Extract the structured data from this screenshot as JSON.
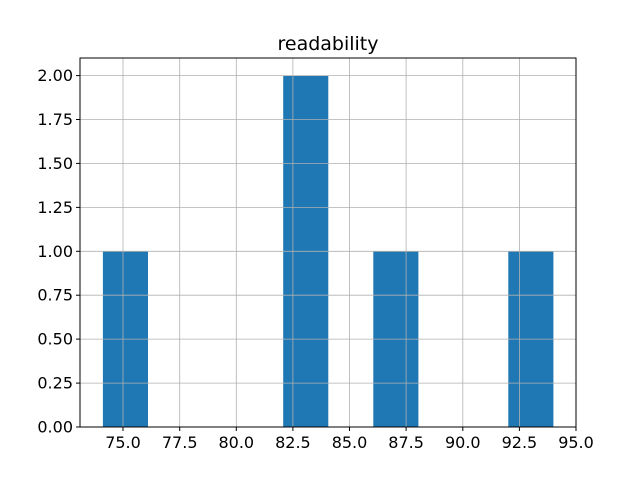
{
  "chart_data": {
    "type": "bar",
    "subtype": "histogram",
    "title": "readability",
    "xlabel": "",
    "ylabel": "",
    "xlim": [
      73.1,
      95.0
    ],
    "ylim": [
      0,
      2.1
    ],
    "grid": true,
    "legend_position": "none",
    "x_ticks": {
      "values": [
        75.0,
        77.5,
        80.0,
        82.5,
        85.0,
        87.5,
        90.0,
        92.5,
        95.0
      ],
      "labels": [
        "75.0",
        "77.5",
        "80.0",
        "82.5",
        "85.0",
        "87.5",
        "90.0",
        "92.5",
        "95.0"
      ]
    },
    "y_ticks": {
      "values": [
        0.0,
        0.25,
        0.5,
        0.75,
        1.0,
        1.25,
        1.5,
        1.75,
        2.0
      ],
      "labels": [
        "0.00",
        "0.25",
        "0.50",
        "0.75",
        "1.00",
        "1.25",
        "1.50",
        "1.75",
        "2.00"
      ]
    },
    "bars": [
      {
        "x_start": 74.11,
        "x_end": 76.1,
        "count": 1
      },
      {
        "x_start": 82.07,
        "x_end": 84.06,
        "count": 2
      },
      {
        "x_start": 86.05,
        "x_end": 88.04,
        "count": 1
      },
      {
        "x_start": 92.01,
        "x_end": 94.0,
        "count": 1
      }
    ],
    "colors": {
      "bar_fill": "#1f77b4",
      "grid": "#b0b0b0",
      "spine": "#000000",
      "text": "#000000",
      "background": "#ffffff"
    }
  }
}
